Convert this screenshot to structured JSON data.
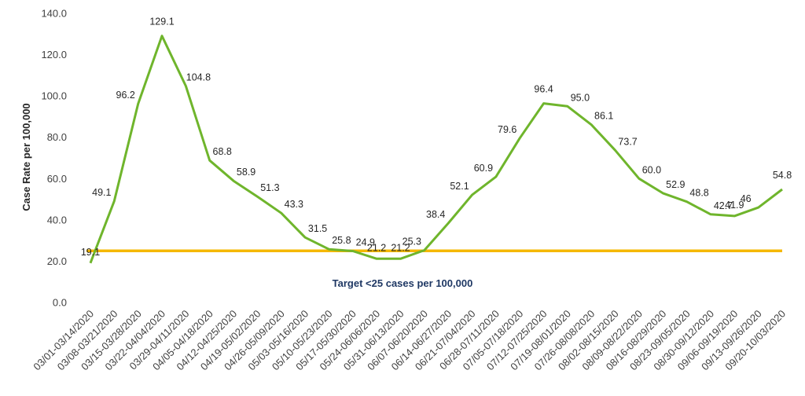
{
  "chart_data": {
    "type": "line",
    "ylabel": "Case Rate per 100,000",
    "xlabel": "",
    "ylim": [
      0,
      140
    ],
    "y_ticks": [
      "0.0",
      "20.0",
      "40.0",
      "60.0",
      "80.0",
      "100.0",
      "120.0",
      "140.0"
    ],
    "grid": false,
    "categories": [
      "03/01-03/14/2020",
      "03/08-03/21/2020",
      "03/15-03/28/2020",
      "03/22-04/04/2020",
      "03/29-04/11/2020",
      "04/05-04/18/2020",
      "04/12-04/25/2020",
      "04/19-05/02/2020",
      "04/26-05/09/2020",
      "05/03-05/16/2020",
      "05/10-05/23/2020",
      "05/17-05/30/2020",
      "05/24-06/06/2020",
      "05/31-06/13/2020",
      "06/07-06/20/2020",
      "06/14-06/27/2020",
      "06/21-07/04/2020",
      "06/28-07/11/2020",
      "07/05-07/18/2020",
      "07/12-07/25/2020",
      "07/19-08/01/2020",
      "07/26-08/08/2020",
      "08/02-08/15/2020",
      "08/09-08/22/2020",
      "08/16-08/29/2020",
      "08/23-09/05/2020",
      "08/30-09/12/2020",
      "09/06-09/19/2020",
      "09/13-09/26/2020",
      "09/20-10/03/2020"
    ],
    "series": [
      {
        "color": "#6fb52c",
        "values": [
          19.1,
          49.1,
          96.2,
          129.1,
          104.8,
          68.8,
          58.9,
          51.3,
          43.3,
          31.5,
          25.8,
          24.9,
          21.2,
          21.2,
          25.3,
          38.4,
          52.1,
          60.9,
          79.6,
          96.4,
          95.0,
          86.1,
          73.7,
          60.0,
          52.9,
          48.8,
          42.7,
          41.9,
          46,
          54.8
        ],
        "labels": [
          "19.1",
          "49.1",
          "96.2",
          "129.1",
          "104.8",
          "68.8",
          "58.9",
          "51.3",
          "43.3",
          "31.5",
          "25.8",
          "24.9",
          "21.2",
          "21.2",
          "25.3",
          "38.4",
          "52.1",
          "60.9",
          "79.6",
          "96.4",
          "95.0",
          "86.1",
          "73.7",
          "60.0",
          "52.9",
          "48.8",
          "42.7",
          "41.9",
          "46",
          "54.8"
        ]
      }
    ],
    "target": {
      "value": 25,
      "color": "#f5b800",
      "label": "Target <25 cases per 100,000",
      "label_color": "#1f3864"
    }
  }
}
